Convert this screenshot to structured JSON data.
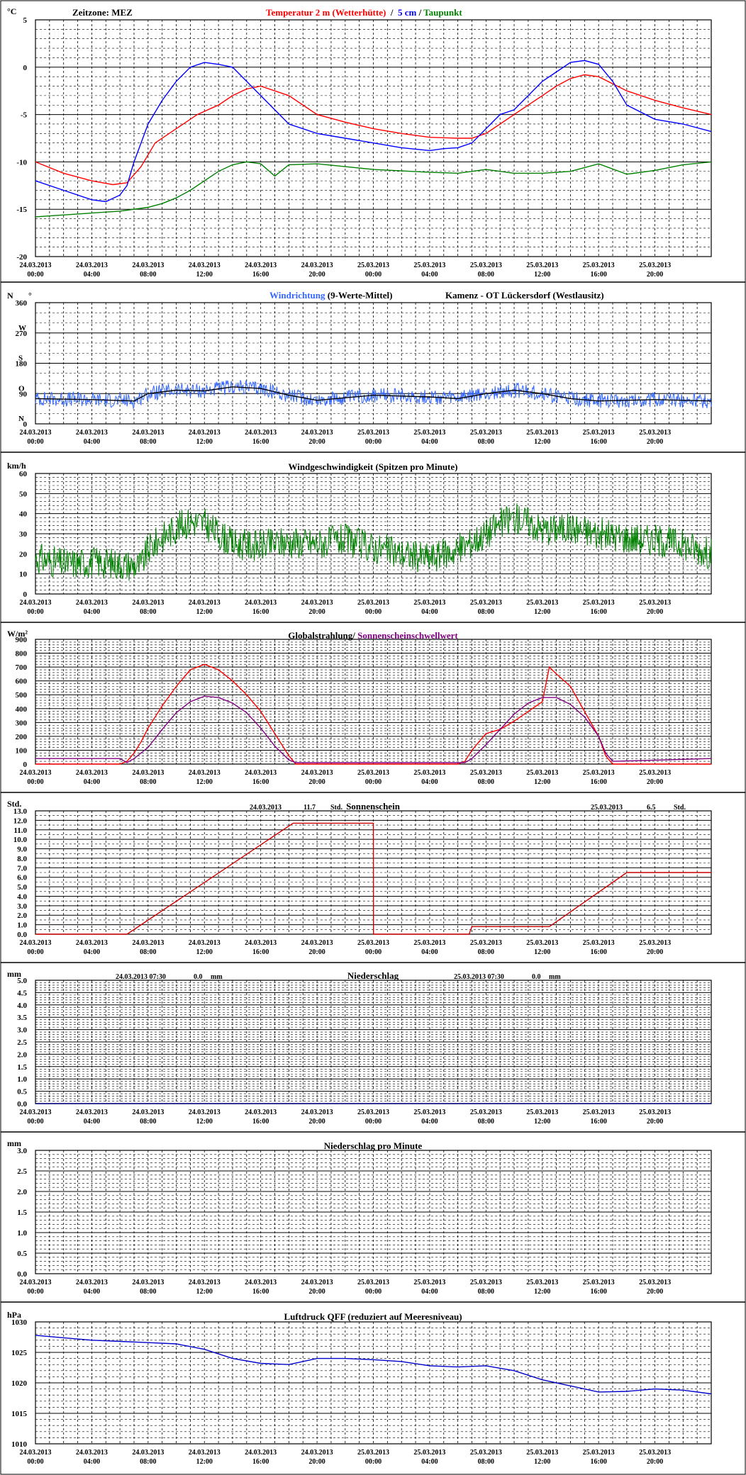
{
  "header": {
    "zeitzone": "Zeitzone: MEZ"
  },
  "x_ticks": [
    [
      "24.03.2013",
      "00:00"
    ],
    [
      "24.03.2013",
      "04:00"
    ],
    [
      "24.03.2013",
      "08:00"
    ],
    [
      "24.03.2013",
      "12:00"
    ],
    [
      "24.03.2013",
      "16:00"
    ],
    [
      "24.03.2013",
      "20:00"
    ],
    [
      "25.03.2013",
      "00:00"
    ],
    [
      "25.03.2013",
      "04:00"
    ],
    [
      "25.03.2013",
      "08:00"
    ],
    [
      "25.03.2013",
      "12:00"
    ],
    [
      "25.03.2013",
      "16:00"
    ],
    [
      "25.03.2013",
      "20:00"
    ]
  ],
  "colors": {
    "temp2m": "#ff0000",
    "temp5cm": "#0000ff",
    "dew": "#008000",
    "wind_dir": "#3366ff",
    "wind_dir_avg": "#000000",
    "wind_speed": "#008000",
    "radiation": "#ff0000",
    "threshold": "#800080",
    "sunshine": "#cc0000",
    "rain": "#000080",
    "pressure": "#0000cc"
  },
  "chart_data": [
    {
      "id": "temperature",
      "type": "line",
      "unit": "°C",
      "title_parts": [
        {
          "text": "Temperatur 2 m (Wetterhütte)",
          "color": "#ff0000"
        },
        {
          "text": "  /  ",
          "color": "#000000"
        },
        {
          "text": "5 cm",
          "color": "#0000ff"
        },
        {
          "text": " / ",
          "color": "#000000"
        },
        {
          "text": "Taupunkt",
          "color": "#008000"
        }
      ],
      "x_range_hours": [
        0,
        48
      ],
      "ylim": [
        -20,
        5
      ],
      "yticks": [
        -20,
        -15,
        -10,
        -5,
        0,
        5
      ],
      "series": [
        {
          "name": "Temperatur 2 m (Wetterhütte)",
          "color": "#ff0000",
          "x": [
            0,
            2,
            4,
            5.5,
            6.5,
            7.5,
            8.5,
            10,
            11.5,
            13,
            14,
            15,
            16,
            18,
            20,
            22,
            24,
            26,
            28,
            30,
            31,
            32,
            33,
            34,
            35,
            36,
            37,
            38,
            39,
            40,
            42,
            44,
            46,
            48
          ],
          "y": [
            -10,
            -11.2,
            -12,
            -12.4,
            -12.2,
            -10.5,
            -8,
            -6.5,
            -5,
            -4,
            -3,
            -2.3,
            -2,
            -3,
            -5,
            -5.8,
            -6.5,
            -7,
            -7.4,
            -7.5,
            -7.5,
            -7,
            -6,
            -5,
            -4,
            -3,
            -2,
            -1.2,
            -0.8,
            -1,
            -2.5,
            -3.5,
            -4.3,
            -5
          ]
        },
        {
          "name": "5 cm",
          "color": "#0000ff",
          "x": [
            0,
            2,
            4,
            5,
            6,
            6.5,
            7,
            7.5,
            8,
            9,
            10,
            11,
            12,
            13,
            14,
            15,
            16,
            17,
            18,
            20,
            22,
            24,
            26,
            28,
            29,
            30,
            31,
            32,
            33,
            34,
            35,
            36,
            37,
            38,
            39,
            40,
            41,
            42,
            44,
            46,
            48
          ],
          "y": [
            -12,
            -13,
            -14,
            -14.2,
            -13.5,
            -12.5,
            -10,
            -8,
            -6,
            -3.5,
            -1.5,
            0,
            0.5,
            0.3,
            0,
            -1.5,
            -3,
            -4.5,
            -6,
            -7,
            -7.5,
            -8,
            -8.5,
            -8.8,
            -8.6,
            -8.5,
            -8,
            -6.5,
            -5,
            -4.5,
            -3,
            -1.5,
            -0.5,
            0.5,
            0.7,
            0.3,
            -1.5,
            -4,
            -5.5,
            -6,
            -6.8
          ]
        },
        {
          "name": "Taupunkt",
          "color": "#008000",
          "x": [
            0,
            3,
            6,
            8,
            9,
            10,
            11,
            12,
            13,
            14,
            15,
            16,
            17,
            18,
            20,
            24,
            28,
            30,
            32,
            34,
            36,
            38,
            40,
            42,
            44,
            46,
            48
          ],
          "y": [
            -15.8,
            -15.5,
            -15.2,
            -14.8,
            -14.4,
            -13.8,
            -13,
            -12,
            -11,
            -10.3,
            -10,
            -10.2,
            -11.5,
            -10.3,
            -10.2,
            -10.8,
            -11.1,
            -11.2,
            -10.8,
            -11.2,
            -11.2,
            -11,
            -10.2,
            -11.3,
            -10.9,
            -10.3,
            -10
          ]
        }
      ]
    },
    {
      "id": "wind_direction",
      "type": "line",
      "unit": "N",
      "unit_suffix": "°",
      "title_parts": [
        {
          "text": "Windrichtung",
          "color": "#3366ff"
        },
        {
          "text": " (9-Werte-Mittel)",
          "color": "#000000"
        }
      ],
      "location": "Kamenz - OT Lückersdorf (Westlausitz)",
      "x_range_hours": [
        0,
        48
      ],
      "ylim": [
        0,
        360
      ],
      "yticks": [
        0,
        90,
        180,
        270,
        360
      ],
      "direction_labels": [
        {
          "text": "N",
          "value": 360
        },
        {
          "text": "W",
          "value": 270
        },
        {
          "text": "S",
          "value": 180
        },
        {
          "text": "O",
          "value": 90
        },
        {
          "text": "N",
          "value": 0
        }
      ],
      "series": [
        {
          "name": "Windrichtung",
          "color": "#3366ff",
          "noisy": true,
          "x": [
            0,
            4,
            7,
            8,
            10,
            12,
            14,
            16,
            18,
            20,
            24,
            28,
            30,
            32,
            34,
            36,
            38,
            40,
            44,
            48
          ],
          "y": [
            75,
            72,
            68,
            90,
            100,
            98,
            110,
            105,
            85,
            70,
            85,
            80,
            75,
            90,
            100,
            90,
            75,
            68,
            72,
            68
          ]
        },
        {
          "name": "9-Werte-Mittel",
          "color": "#000000",
          "x": [
            0,
            4,
            7,
            8,
            10,
            12,
            14,
            16,
            18,
            20,
            24,
            28,
            30,
            32,
            34,
            36,
            38,
            40,
            44,
            48
          ],
          "y": [
            75,
            72,
            68,
            90,
            100,
            98,
            110,
            105,
            85,
            70,
            85,
            80,
            75,
            90,
            100,
            90,
            75,
            68,
            72,
            68
          ]
        }
      ]
    },
    {
      "id": "wind_speed",
      "type": "line",
      "unit": "km/h",
      "title_parts": [
        {
          "text": "Windgeschwindigkeit (Spitzen pro Minute)",
          "color": "#000000"
        }
      ],
      "x_range_hours": [
        0,
        48
      ],
      "ylim": [
        0,
        60
      ],
      "yticks": [
        0,
        10,
        20,
        30,
        40,
        50,
        60
      ],
      "series": [
        {
          "name": "Windgeschwindigkeit",
          "color": "#008000",
          "noisy": true,
          "x": [
            0,
            2,
            4,
            6,
            7.5,
            8,
            9,
            10,
            11,
            12,
            13,
            14,
            16,
            18,
            20,
            22,
            24,
            26,
            28,
            30,
            32,
            33,
            34,
            35,
            36,
            38,
            40,
            42,
            44,
            46,
            48
          ],
          "y": [
            18,
            15,
            16,
            15,
            14,
            22,
            28,
            33,
            36,
            35,
            30,
            25,
            24,
            26,
            25,
            27,
            23,
            20,
            18,
            22,
            30,
            35,
            38,
            36,
            32,
            33,
            30,
            28,
            27,
            25,
            20
          ]
        }
      ]
    },
    {
      "id": "radiation",
      "type": "line",
      "unit": "W/m²",
      "title_parts": [
        {
          "text": "Globalstrahlung/ ",
          "color": "#000000"
        },
        {
          "text": "Sonnenscheinschwellwert",
          "color": "#800080"
        }
      ],
      "x_range_hours": [
        0,
        48
      ],
      "ylim": [
        0,
        900
      ],
      "yticks": [
        0,
        100,
        200,
        300,
        400,
        500,
        600,
        700,
        800,
        900
      ],
      "series": [
        {
          "name": "Globalstrahlung",
          "color": "#ff0000",
          "x": [
            0,
            6,
            6.5,
            7,
            7.5,
            8,
            9,
            10,
            11,
            12,
            13,
            14,
            15,
            16,
            17,
            18,
            18.5,
            24,
            30,
            30.5,
            31,
            32,
            33,
            34,
            35,
            36,
            36.5,
            37,
            38,
            39,
            40,
            40.5,
            41,
            48
          ],
          "y": [
            0,
            0,
            20,
            80,
            160,
            260,
            420,
            560,
            680,
            720,
            680,
            600,
            500,
            380,
            220,
            60,
            0,
            0,
            0,
            20,
            100,
            220,
            250,
            310,
            380,
            450,
            700,
            650,
            560,
            380,
            200,
            60,
            0,
            0
          ]
        },
        {
          "name": "Sonnenscheinschwellwert",
          "color": "#800080",
          "x": [
            0,
            6,
            6.5,
            7,
            8,
            9,
            10,
            11,
            12,
            13,
            14,
            15,
            16,
            17,
            18,
            18.5,
            30,
            30.5,
            31,
            32,
            33,
            34,
            35,
            36,
            37,
            38,
            39,
            40,
            40.5,
            41,
            48
          ],
          "y": [
            40,
            40,
            10,
            40,
            120,
            250,
            370,
            450,
            490,
            480,
            440,
            370,
            260,
            130,
            30,
            10,
            10,
            10,
            40,
            140,
            250,
            360,
            440,
            480,
            480,
            430,
            340,
            200,
            80,
            20,
            40
          ]
        }
      ]
    },
    {
      "id": "sunshine",
      "type": "line",
      "unit": "Std.",
      "title_parts": [
        {
          "text": "Sonnenschein",
          "color": "#000000"
        }
      ],
      "annotations": [
        {
          "date": "24.03.2013",
          "value": "11.7",
          "unit": "Std."
        },
        {
          "date": "25.03.2013",
          "value": "6.5",
          "unit": "Std."
        }
      ],
      "x_range_hours": [
        0,
        48
      ],
      "ylim": [
        0,
        13
      ],
      "yticks": [
        0,
        1,
        2,
        3,
        4,
        5,
        6,
        7,
        8,
        9,
        10,
        11,
        12,
        13
      ],
      "ytick_labels": [
        "0.0",
        "1.0",
        "2.0",
        "3.0",
        "4.0",
        "5.0",
        "6.0",
        "7.0",
        "8.0",
        "9.0",
        "10.0",
        "11.0",
        "12.0",
        "13.0"
      ],
      "series": [
        {
          "name": "Sonnenschein",
          "color": "#cc0000",
          "x": [
            0,
            6.5,
            18.3,
            24,
            24.01,
            30.8,
            31,
            36.5,
            42,
            48
          ],
          "y": [
            0,
            0,
            11.7,
            11.7,
            0,
            0,
            0.8,
            0.8,
            6.5,
            6.5
          ]
        }
      ]
    },
    {
      "id": "precipitation",
      "type": "line",
      "unit": "mm",
      "title_parts": [
        {
          "text": "Niederschlag",
          "color": "#000000"
        }
      ],
      "annotations": [
        {
          "date": "24.03.2013 07:30",
          "value": "0.0",
          "unit": "mm"
        },
        {
          "date": "25.03.2013 07:30",
          "value": "0.0",
          "unit": "mm"
        }
      ],
      "x_range_hours": [
        0,
        48
      ],
      "ylim": [
        0,
        5
      ],
      "yticks": [
        0,
        0.5,
        1,
        1.5,
        2,
        2.5,
        3,
        3.5,
        4,
        4.5,
        5
      ],
      "ytick_labels": [
        "0.0",
        "0.5",
        "1.0",
        "1.5",
        "2.0",
        "2.5",
        "3.0",
        "3.5",
        "4.0",
        "4.5",
        "5.0"
      ],
      "series": [
        {
          "name": "Niederschlag",
          "color": "#000080",
          "x": [
            0,
            48
          ],
          "y": [
            0,
            0
          ]
        }
      ]
    },
    {
      "id": "precip_minute",
      "type": "line",
      "unit": "mm",
      "title_parts": [
        {
          "text": "Niederschlag pro Minute",
          "color": "#000000"
        }
      ],
      "x_range_hours": [
        0,
        48
      ],
      "ylim": [
        0,
        3
      ],
      "yticks": [
        0,
        0.5,
        1,
        1.5,
        2,
        2.5,
        3
      ],
      "ytick_labels": [
        "0.0",
        "0.5",
        "1.0",
        "1.5",
        "2.0",
        "2.5",
        "3.0"
      ],
      "series": []
    },
    {
      "id": "pressure",
      "type": "line",
      "unit": "hPa",
      "title_parts": [
        {
          "text": "Luftdruck QFF (reduziert auf Meeresniveau)",
          "color": "#000000"
        }
      ],
      "x_range_hours": [
        0,
        48
      ],
      "ylim": [
        1010,
        1030
      ],
      "yticks": [
        1010,
        1015,
        1020,
        1025,
        1030
      ],
      "series": [
        {
          "name": "Luftdruck QFF",
          "color": "#0000cc",
          "x": [
            0,
            2,
            4,
            6,
            8,
            10,
            12,
            14,
            16,
            18,
            20,
            22,
            24,
            26,
            28,
            30,
            32,
            34,
            36,
            38,
            40,
            42,
            44,
            46,
            48
          ],
          "y": [
            1027.8,
            1027.4,
            1027,
            1026.8,
            1026.6,
            1026.4,
            1025.5,
            1024,
            1023.2,
            1023,
            1024,
            1024,
            1023.8,
            1023.5,
            1022.8,
            1022.6,
            1022.8,
            1022,
            1020.5,
            1019.5,
            1018.5,
            1018.6,
            1019,
            1018.8,
            1018.2
          ]
        }
      ]
    }
  ]
}
